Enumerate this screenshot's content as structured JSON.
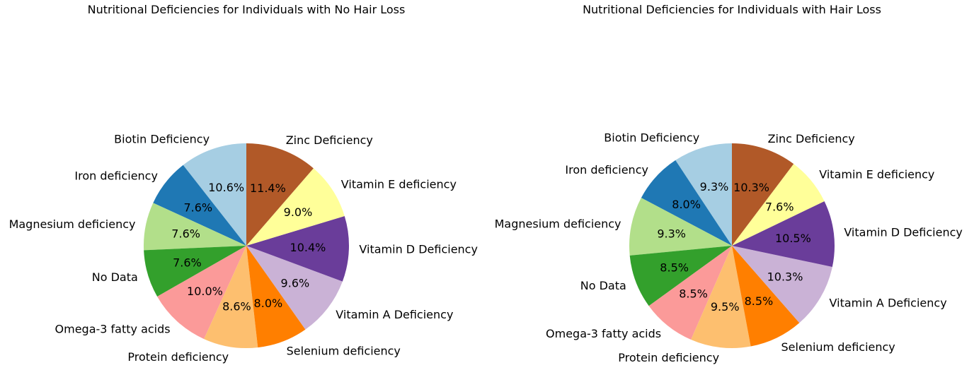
{
  "chart_data": [
    {
      "type": "pie",
      "title": "Nutritional Deficiencies for Individuals with No Hair Loss",
      "start": "top",
      "direction": "counterclockwise",
      "slices": [
        {
          "label": "Biotin Deficiency",
          "value": 10.6,
          "pct_label": "10.6%",
          "color": "#a6cee3"
        },
        {
          "label": "Iron deficiency",
          "value": 7.6,
          "pct_label": "7.6%",
          "color": "#1f78b4"
        },
        {
          "label": "Magnesium deficiency",
          "value": 7.6,
          "pct_label": "7.6%",
          "color": "#b2df8a"
        },
        {
          "label": "No Data",
          "value": 7.6,
          "pct_label": "7.6%",
          "color": "#33a02c"
        },
        {
          "label": "Omega-3 fatty acids",
          "value": 10.0,
          "pct_label": "10.0%",
          "color": "#fb9a99"
        },
        {
          "label": "Protein deficiency",
          "value": 8.6,
          "pct_label": "8.6%",
          "color": "#fdbf6f"
        },
        {
          "label": "Selenium deficiency",
          "value": 8.0,
          "pct_label": "8.0%",
          "color": "#ff7f00"
        },
        {
          "label": "Vitamin A Deficiency",
          "value": 9.6,
          "pct_label": "9.6%",
          "color": "#cab2d6"
        },
        {
          "label": "Vitamin D Deficiency",
          "value": 10.4,
          "pct_label": "10.4%",
          "color": "#6a3d9a"
        },
        {
          "label": "Vitamin E deficiency",
          "value": 9.0,
          "pct_label": "9.0%",
          "color": "#ffff99"
        },
        {
          "label": "Zinc Deficiency",
          "value": 11.4,
          "pct_label": "11.4%",
          "color": "#b15928"
        }
      ]
    },
    {
      "type": "pie",
      "title": "Nutritional Deficiencies for Individuals with Hair Loss",
      "start": "top",
      "direction": "counterclockwise",
      "slices": [
        {
          "label": "Biotin Deficiency",
          "value": 9.3,
          "pct_label": "9.3%",
          "color": "#a6cee3"
        },
        {
          "label": "Iron deficiency",
          "value": 8.0,
          "pct_label": "8.0%",
          "color": "#1f78b4"
        },
        {
          "label": "Magnesium deficiency",
          "value": 9.3,
          "pct_label": "9.3%",
          "color": "#b2df8a"
        },
        {
          "label": "No Data",
          "value": 8.5,
          "pct_label": "8.5%",
          "color": "#33a02c"
        },
        {
          "label": "Omega-3 fatty acids",
          "value": 8.5,
          "pct_label": "8.5%",
          "color": "#fb9a99"
        },
        {
          "label": "Protein deficiency",
          "value": 9.5,
          "pct_label": "9.5%",
          "color": "#fdbf6f"
        },
        {
          "label": "Selenium deficiency",
          "value": 8.5,
          "pct_label": "8.5%",
          "color": "#ff7f00"
        },
        {
          "label": "Vitamin A Deficiency",
          "value": 10.3,
          "pct_label": "10.3%",
          "color": "#cab2d6"
        },
        {
          "label": "Vitamin D Deficiency",
          "value": 10.5,
          "pct_label": "10.5%",
          "color": "#6a3d9a"
        },
        {
          "label": "Vitamin E deficiency",
          "value": 7.6,
          "pct_label": "7.6%",
          "color": "#ffff99"
        },
        {
          "label": "Zinc Deficiency",
          "value": 10.3,
          "pct_label": "10.3%",
          "color": "#b15928"
        }
      ]
    }
  ]
}
